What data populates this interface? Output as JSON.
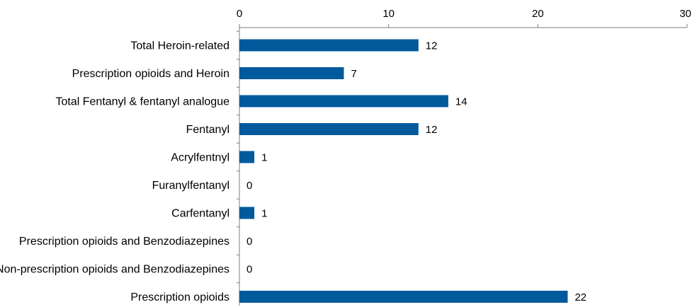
{
  "chart_data": {
    "type": "bar",
    "orientation": "horizontal",
    "categories": [
      "Total Heroin-related",
      "Prescription opioids and Heroin",
      "Total Fentanyl & fentanyl analogue",
      "Fentanyl",
      "Acrylfentnyl",
      "Furanylfentanyl",
      "Carfentanyl",
      "Prescription opioids and Benzodiazepines",
      "Non-prescription opioids and Benzodiazepines",
      "Prescription opioids"
    ],
    "values": [
      12,
      7,
      14,
      12,
      1,
      0,
      1,
      0,
      0,
      22
    ],
    "xlim": [
      0,
      30
    ],
    "xticks": [
      "0",
      "10",
      "20",
      "30"
    ],
    "x_axis_position": "top",
    "grid": false,
    "legend": "none",
    "bar_color": "#005a9c",
    "title": "",
    "xlabel": "",
    "ylabel": ""
  }
}
